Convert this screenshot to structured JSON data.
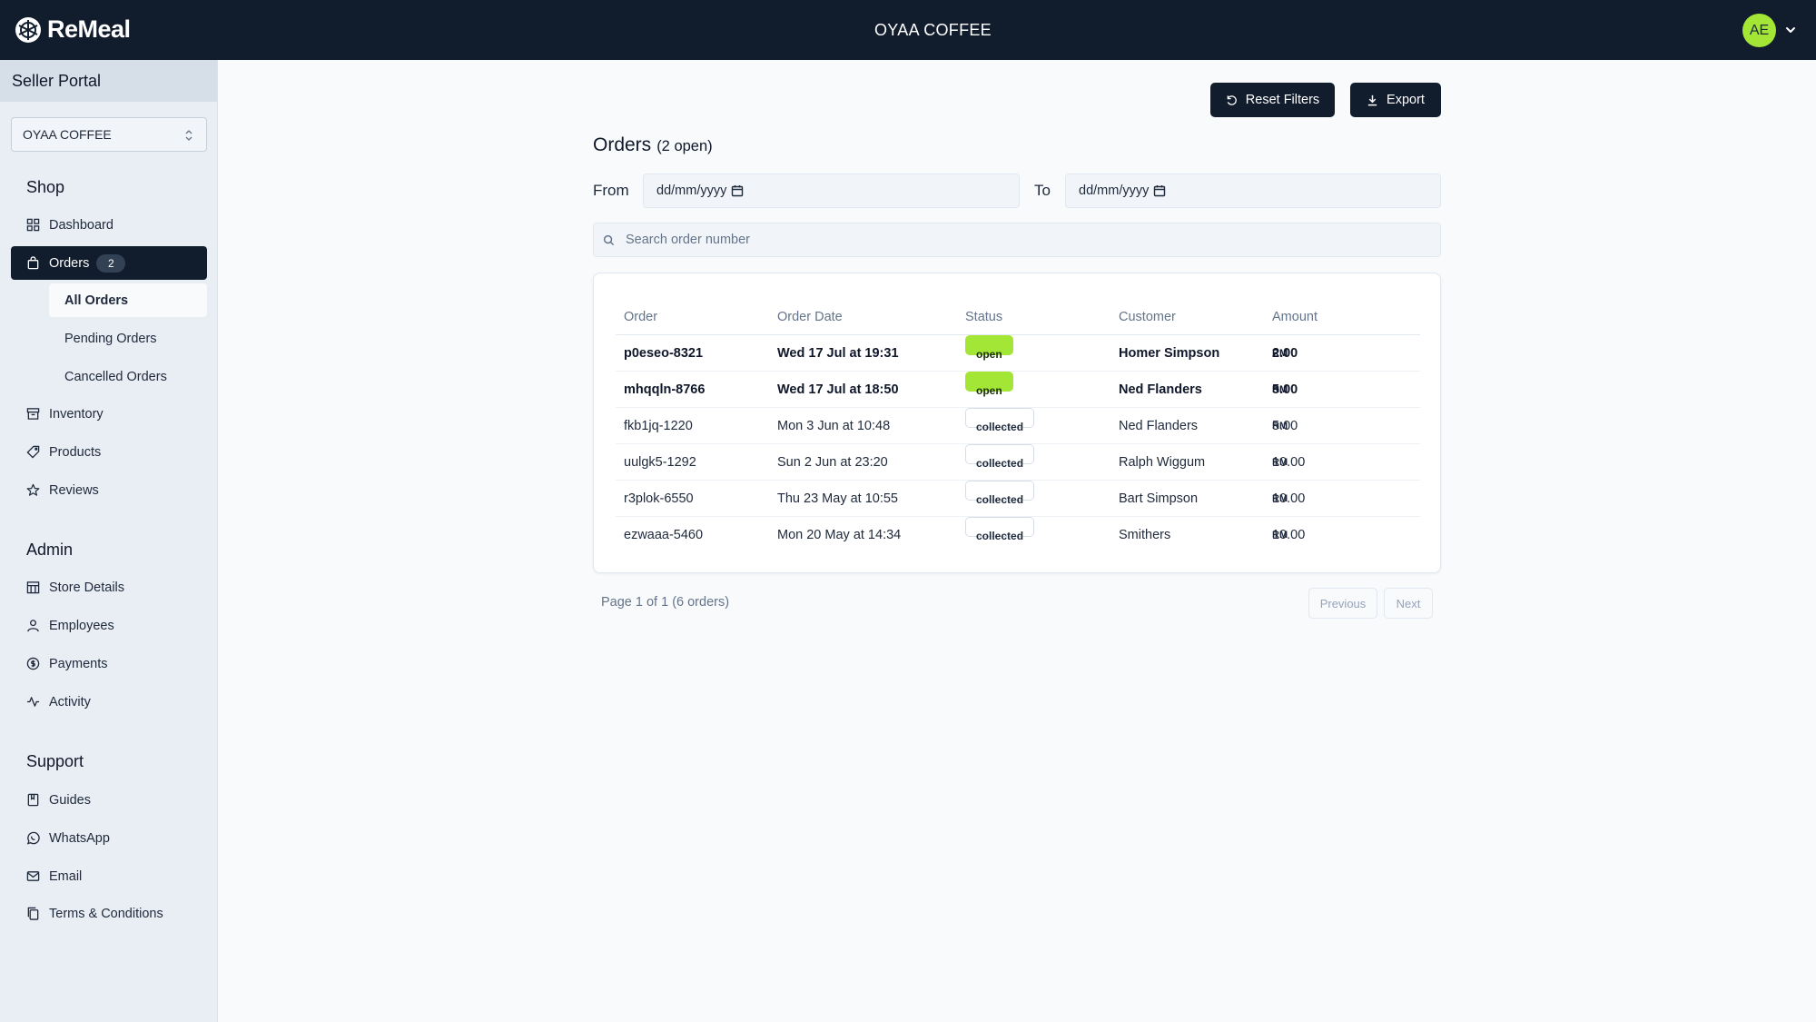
{
  "app": {
    "name": "ReMeal",
    "store_title": "OYAA COFFEE"
  },
  "user": {
    "initials": "AE"
  },
  "sidebar": {
    "portal_title": "Seller Portal",
    "store_select": "OYAA COFFEE",
    "sections": {
      "shop": "Shop",
      "admin": "Admin",
      "support": "Support"
    },
    "shop_items": {
      "dashboard": "Dashboard",
      "orders": "Orders",
      "orders_badge": "2",
      "all_orders": "All Orders",
      "pending_orders": "Pending Orders",
      "cancelled_orders": "Cancelled Orders",
      "inventory": "Inventory",
      "products": "Products",
      "reviews": "Reviews"
    },
    "admin_items": {
      "store_details": "Store Details",
      "employees": "Employees",
      "payments": "Payments",
      "activity": "Activity"
    },
    "support_items": {
      "guides": "Guides",
      "whatsapp": "WhatsApp",
      "email": "Email",
      "terms": "Terms & Conditions"
    }
  },
  "toolbar": {
    "reset_label": "Reset Filters",
    "export_label": "Export"
  },
  "orders": {
    "heading": "Orders",
    "open_count": "(2 open)",
    "from_label": "From",
    "to_label": "To",
    "from_value": "dd/mm/yyyy",
    "to_value": "dd/mm/yyyy",
    "search_placeholder": "Search order number",
    "columns": [
      "Order",
      "Order Date",
      "Status",
      "Customer",
      "Amount"
    ],
    "currency": "RM",
    "rows": [
      {
        "order": "p0eseo-8321",
        "date": "Wed 17 Jul at 19:31",
        "status": "open",
        "customer": "Homer Simpson",
        "amount": "2.00"
      },
      {
        "order": "mhqqln-8766",
        "date": "Wed 17 Jul at 18:50",
        "status": "open",
        "customer": "Ned Flanders",
        "amount": "5.00"
      },
      {
        "order": "fkb1jq-1220",
        "date": "Mon 3 Jun at 10:48",
        "status": "collected",
        "customer": "Ned Flanders",
        "amount": "5.00"
      },
      {
        "order": "uulgk5-1292",
        "date": "Sun 2 Jun at 23:20",
        "status": "collected",
        "customer": "Ralph Wiggum",
        "amount": "10.00"
      },
      {
        "order": "r3plok-6550",
        "date": "Thu 23 May at 10:55",
        "status": "collected",
        "customer": "Bart Simpson",
        "amount": "10.00"
      },
      {
        "order": "ezwaaa-5460",
        "date": "Mon 20 May at 14:34",
        "status": "collected",
        "customer": "Smithers",
        "amount": "10.00"
      }
    ],
    "pagination": {
      "text": "Page 1 of 1 (6 orders)",
      "previous": "Previous",
      "next": "Next"
    }
  },
  "colors": {
    "topbar": "#111c2d",
    "accent": "#a3e635",
    "sidebar": "#e9eef4"
  }
}
